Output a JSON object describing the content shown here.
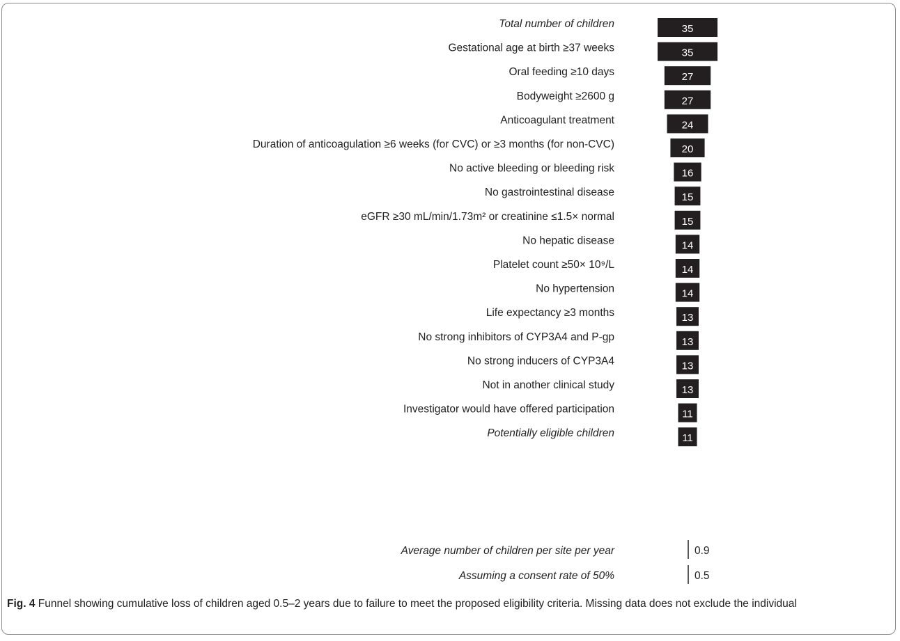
{
  "chart_data": {
    "type": "bar",
    "orientation": "funnel",
    "categories": [
      "Total number of children",
      "Gestational age at birth ≥37 weeks",
      "Oral feeding ≥10 days",
      "Bodyweight ≥2600 g",
      "Anticoagulant treatment",
      "Duration of anticoagulation ≥6 weeks (for CVC) or ≥3 months (for non-CVC)",
      "No active bleeding or bleeding risk",
      "No gastrointestinal disease",
      "eGFR ≥30 mL/min/1.73m² or creatinine ≤1.5× normal",
      "No hepatic disease",
      "Platelet count ≥50× 10⁹/L",
      "No hypertension",
      "Life expectancy ≥3 months",
      "No strong inhibitors of CYP3A4 and P-gp",
      "No strong inducers of CYP3A4",
      "Not in another clinical study",
      "Investigator would have offered participation",
      "Potentially eligible children"
    ],
    "values": [
      35,
      35,
      27,
      27,
      24,
      20,
      16,
      15,
      15,
      14,
      14,
      14,
      13,
      13,
      13,
      13,
      11,
      11
    ],
    "italic_rows": [
      0,
      17
    ],
    "summary": [
      {
        "label": "Average number of children per site per year",
        "value": "0.9"
      },
      {
        "label": "Assuming a consent rate of 50%",
        "value": "0.5"
      }
    ],
    "bar_color": "#231f20",
    "value_color": "#ffffff"
  },
  "caption": {
    "fig_label": "Fig. 4",
    "text": " Funnel showing cumulative loss of children aged 0.5–2 years due to failure to meet the proposed eligibility criteria. Missing data does not exclude the individual"
  }
}
